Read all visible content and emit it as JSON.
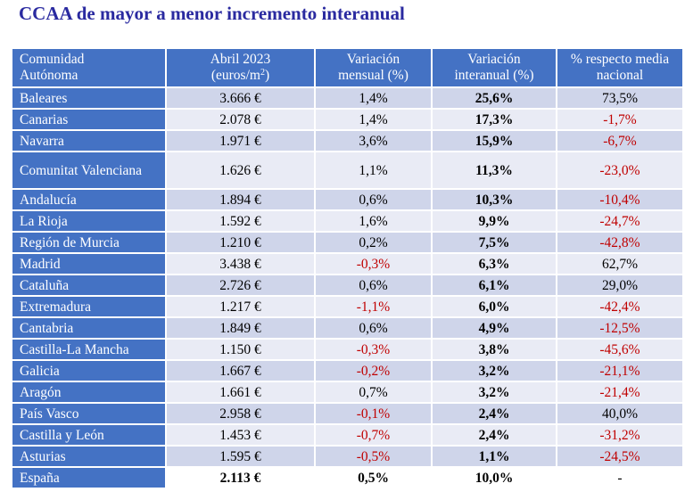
{
  "title": "CCAA de mayor  a menor incremento interanual",
  "headers": {
    "col0_line1": "Comunidad",
    "col0_line2": "Autónoma",
    "col1_line1": "Abril 2023",
    "col1_line2": "(euros/m",
    "col1_sup": "2",
    "col1_close": ")",
    "col2_line1": "Variación",
    "col2_line2": "mensual (%)",
    "col3_line1": "Variación",
    "col3_line2": "interanual (%)",
    "col4_line1": "% respecto media",
    "col4_line2": "nacional"
  },
  "rows": [
    {
      "name": "Baleares",
      "price": "3.666 €",
      "monthly": "1,4%",
      "annual": "25,6%",
      "vs_national": "73,5%"
    },
    {
      "name": "Canarias",
      "price": "2.078 €",
      "monthly": "1,4%",
      "annual": "17,3%",
      "vs_national": "-1,7%"
    },
    {
      "name": "Navarra",
      "price": "1.971 €",
      "monthly": "3,6%",
      "annual": "15,9%",
      "vs_national": "-6,7%"
    },
    {
      "name": "Comunitat Valenciana",
      "price": "1.626 €",
      "monthly": "1,1%",
      "annual": "11,3%",
      "vs_national": "-23,0%"
    },
    {
      "name": "Andalucía",
      "price": "1.894 €",
      "monthly": "0,6%",
      "annual": "10,3%",
      "vs_national": "-10,4%"
    },
    {
      "name": "La Rioja",
      "price": "1.592 €",
      "monthly": "1,6%",
      "annual": "9,9%",
      "vs_national": "-24,7%"
    },
    {
      "name": "Región de Murcia",
      "price": "1.210 €",
      "monthly": "0,2%",
      "annual": "7,5%",
      "vs_national": "-42,8%"
    },
    {
      "name": "Madrid",
      "price": "3.438 €",
      "monthly": "-0,3%",
      "annual": "6,3%",
      "vs_national": "62,7%"
    },
    {
      "name": "Cataluña",
      "price": "2.726 €",
      "monthly": "0,6%",
      "annual": "6,1%",
      "vs_national": "29,0%"
    },
    {
      "name": "Extremadura",
      "price": "1.217 €",
      "monthly": "-1,1%",
      "annual": "6,0%",
      "vs_national": "-42,4%"
    },
    {
      "name": "Cantabria",
      "price": "1.849 €",
      "monthly": "0,6%",
      "annual": "4,9%",
      "vs_national": "-12,5%"
    },
    {
      "name": "Castilla-La Mancha",
      "price": "1.150 €",
      "monthly": "-0,3%",
      "annual": "3,8%",
      "vs_national": "-45,6%"
    },
    {
      "name": "Galicia",
      "price": "1.667 €",
      "monthly": "-0,2%",
      "annual": "3,2%",
      "vs_national": "-21,1%"
    },
    {
      "name": "Aragón",
      "price": "1.661 €",
      "monthly": "0,7%",
      "annual": "3,2%",
      "vs_national": "-21,4%"
    },
    {
      "name": "País Vasco",
      "price": "2.958 €",
      "monthly": "-0,1%",
      "annual": "2,4%",
      "vs_national": "40,0%"
    },
    {
      "name": "Castilla y León",
      "price": "1.453 €",
      "monthly": "-0,7%",
      "annual": "2,4%",
      "vs_national": "-31,2%"
    },
    {
      "name": "Asturias",
      "price": "1.595 €",
      "monthly": "-0,5%",
      "annual": "1,1%",
      "vs_national": "-24,5%"
    },
    {
      "name": "España",
      "price": "2.113 €",
      "monthly": "0,5%",
      "annual": "10,0%",
      "vs_national": "-"
    }
  ],
  "colors": {
    "title": "#2a2aa0",
    "header_bg": "#4472c4",
    "row_band_dark": "#cfd5ea",
    "row_band_light": "#e9ebf5",
    "negative": "#c00000"
  }
}
